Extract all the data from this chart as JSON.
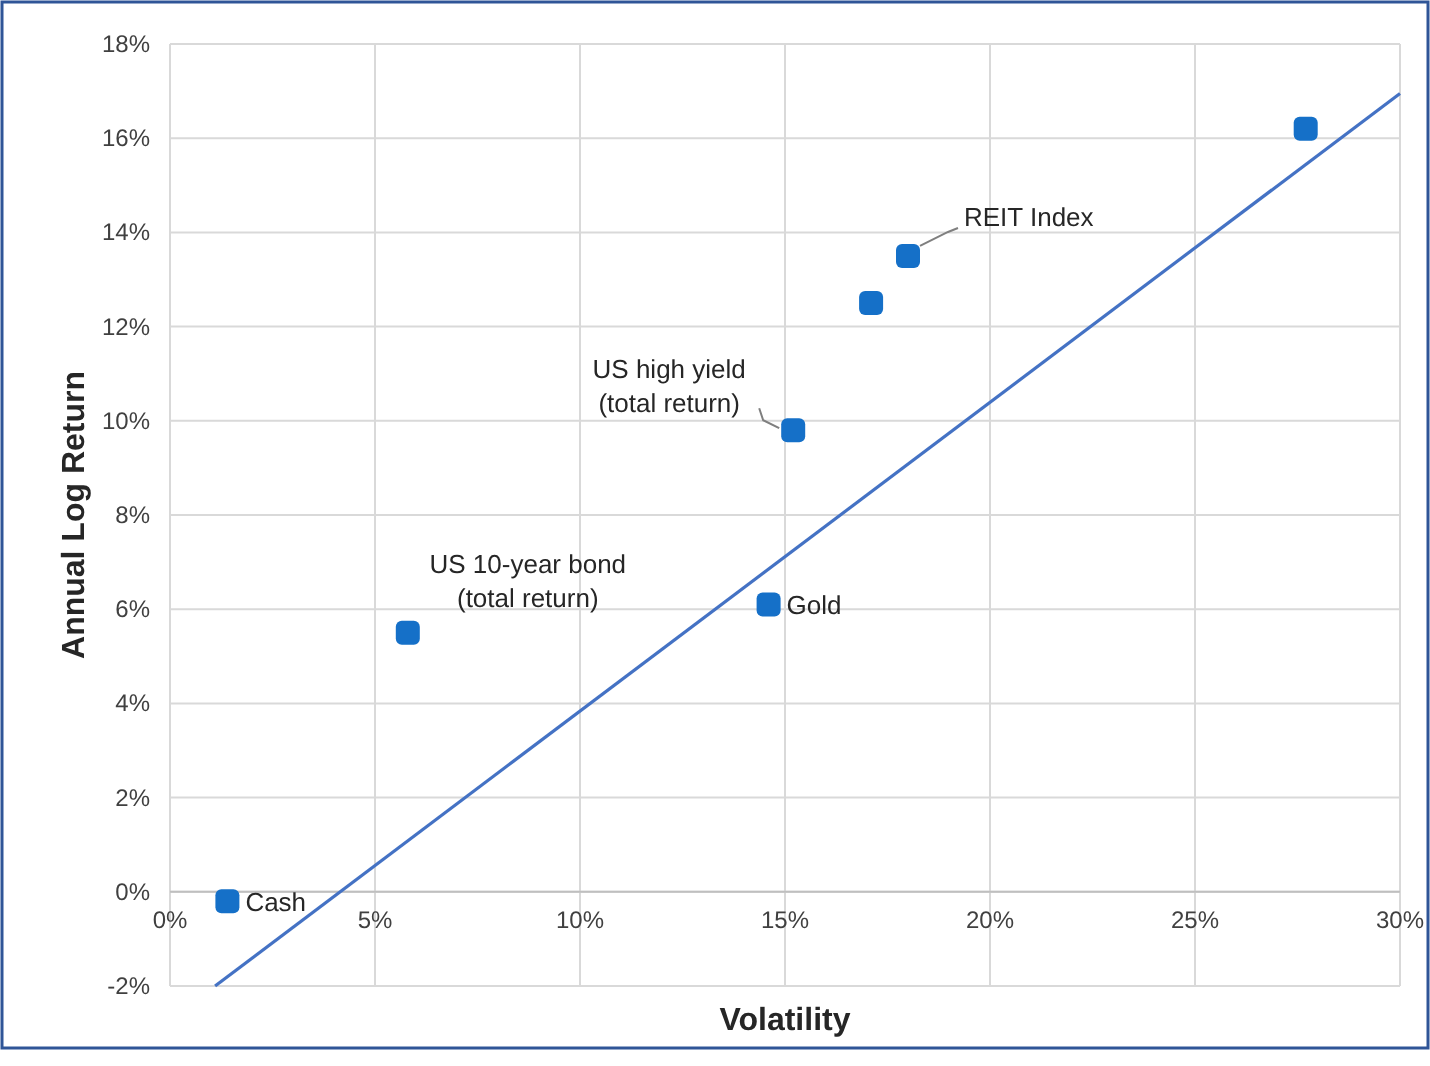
{
  "chart_data": {
    "type": "scatter",
    "xlabel": "Volatility",
    "ylabel": "Annual Log Return",
    "xlim": [
      0,
      30
    ],
    "ylim": [
      -2,
      18
    ],
    "xticks": [
      {
        "value": 0,
        "label": "0%"
      },
      {
        "value": 5,
        "label": "5%"
      },
      {
        "value": 10,
        "label": "10%"
      },
      {
        "value": 15,
        "label": "15%"
      },
      {
        "value": 20,
        "label": "20%"
      },
      {
        "value": 25,
        "label": "25%"
      },
      {
        "value": 30,
        "label": "30%"
      }
    ],
    "yticks": [
      {
        "value": -2,
        "label": "-2%"
      },
      {
        "value": 0,
        "label": "0%"
      },
      {
        "value": 2,
        "label": "2%"
      },
      {
        "value": 4,
        "label": "4%"
      },
      {
        "value": 6,
        "label": "6%"
      },
      {
        "value": 8,
        "label": "8%"
      },
      {
        "value": 10,
        "label": "10%"
      },
      {
        "value": 12,
        "label": "12%"
      },
      {
        "value": 14,
        "label": "14%"
      },
      {
        "value": 16,
        "label": "16%"
      },
      {
        "value": 18,
        "label": "18%"
      }
    ],
    "grid": true,
    "series": [
      {
        "marker": "square",
        "color": "#1570c8",
        "x": [
          1.4,
          5.8,
          14.6,
          15.2,
          17.1,
          18.0,
          27.7
        ],
        "values": [
          -0.2,
          5.5,
          6.1,
          9.8,
          12.5,
          13.5,
          16.2
        ]
      },
      {
        "type": "line",
        "color": "#4472c4",
        "x": [
          1.1,
          30
        ],
        "values": [
          -2,
          16.95
        ]
      }
    ],
    "annotations": [
      {
        "text": "Cash",
        "x": 1.4,
        "y": -0.2
      },
      {
        "text": "US 10-year bond\n(total return)",
        "x": 5.8,
        "y": 5.5
      },
      {
        "text": "Gold",
        "x": 14.6,
        "y": 6.1
      },
      {
        "text": "US high yield\n(total return)",
        "x": 15.2,
        "y": 9.8
      },
      {
        "text": "REIT Index",
        "x": 18.0,
        "y": 13.5
      }
    ]
  }
}
